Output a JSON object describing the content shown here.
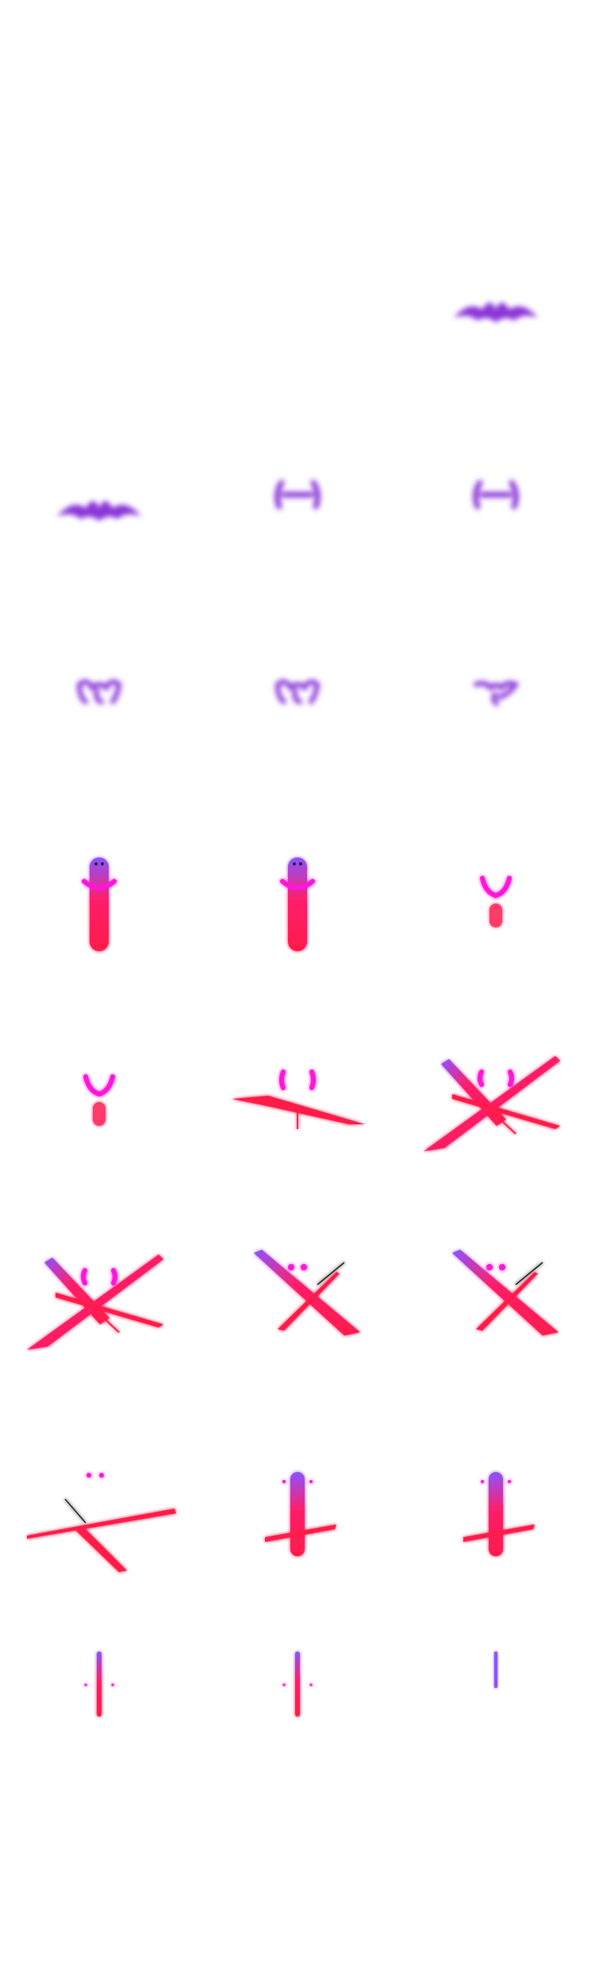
{
  "sprite_sheet": {
    "columns": 3,
    "rows": 10,
    "colors": {
      "bat_purple": "#8a34d8",
      "violet": "#8c52ff",
      "magenta": "#ff14d8",
      "blade_red": "#ff1f4a",
      "blade_pink": "#ff3a6a"
    },
    "frames": [
      {
        "index": 0,
        "kind": "empty"
      },
      {
        "index": 1,
        "kind": "empty"
      },
      {
        "index": 2,
        "kind": "empty"
      },
      {
        "index": 3,
        "kind": "empty"
      },
      {
        "index": 4,
        "kind": "empty"
      },
      {
        "index": 5,
        "kind": "bat-flying"
      },
      {
        "index": 6,
        "kind": "bat-flying"
      },
      {
        "index": 7,
        "kind": "bat-folding"
      },
      {
        "index": 8,
        "kind": "bat-folding"
      },
      {
        "index": 9,
        "kind": "bat-hanging"
      },
      {
        "index": 10,
        "kind": "bat-hanging"
      },
      {
        "index": 11,
        "kind": "bat-hanging-small"
      },
      {
        "index": 12,
        "kind": "figure-tall-glow"
      },
      {
        "index": 13,
        "kind": "figure-tall-glow"
      },
      {
        "index": 14,
        "kind": "horns-and-pill"
      },
      {
        "index": 15,
        "kind": "horns-and-pill"
      },
      {
        "index": 16,
        "kind": "horns-over-slanted-blade"
      },
      {
        "index": 17,
        "kind": "crossed-blades-with-horns"
      },
      {
        "index": 18,
        "kind": "crossed-blades-with-horns"
      },
      {
        "index": 19,
        "kind": "crossed-blades-eyes"
      },
      {
        "index": 20,
        "kind": "crossed-blades-eyes"
      },
      {
        "index": 21,
        "kind": "slash-blades-eyes"
      },
      {
        "index": 22,
        "kind": "blade-cross-vertical"
      },
      {
        "index": 23,
        "kind": "blade-cross-vertical"
      },
      {
        "index": 24,
        "kind": "thin-vertical-dots"
      },
      {
        "index": 25,
        "kind": "thin-vertical-dots"
      },
      {
        "index": 26,
        "kind": "thin-vertical-line"
      },
      {
        "index": 27,
        "kind": "empty"
      },
      {
        "index": 28,
        "kind": "empty"
      },
      {
        "index": 29,
        "kind": "empty"
      }
    ]
  }
}
